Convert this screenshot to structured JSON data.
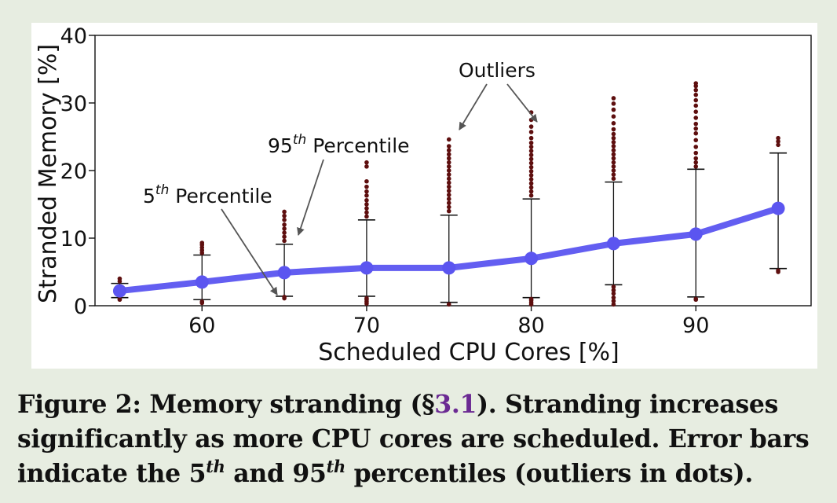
{
  "chart_data": {
    "type": "line",
    "xlabel": "Scheduled CPU Cores [%]",
    "ylabel": "Stranded Memory [%]",
    "xlim": [
      53.5,
      97
    ],
    "ylim": [
      0,
      40
    ],
    "xticks": [
      "60",
      "70",
      "80",
      "90"
    ],
    "yticks": [
      "0",
      "10",
      "20",
      "30",
      "40"
    ],
    "x": [
      55,
      60,
      65,
      70,
      75,
      80,
      85,
      90,
      95
    ],
    "series": [
      {
        "values": [
          2.2,
          3.5,
          4.9,
          5.6,
          5.6,
          7.0,
          9.2,
          10.6,
          14.4
        ]
      }
    ],
    "error_bars": {
      "p5": [
        1.2,
        0.9,
        1.4,
        1.4,
        0.5,
        1.2,
        3.1,
        1.3,
        5.5
      ],
      "p95": [
        3.3,
        7.5,
        9.1,
        12.7,
        13.4,
        15.8,
        18.3,
        20.2,
        22.6
      ]
    },
    "outliers": [
      {
        "x": 55,
        "values": [
          3.6,
          4.0,
          0.9,
          1.0
        ]
      },
      {
        "x": 60,
        "values": [
          7.8,
          8.2,
          8.6,
          9.0,
          9.3,
          0.4,
          0.6
        ]
      },
      {
        "x": 65,
        "values": [
          9.6,
          10.2,
          10.8,
          11.4,
          12.0,
          12.7,
          13.3,
          13.9,
          1.1,
          1.3
        ]
      },
      {
        "x": 70,
        "values": [
          13.2,
          13.8,
          14.4,
          15.0,
          15.6,
          16.3,
          16.9,
          17.6,
          18.4,
          20.6,
          21.2,
          0.3,
          0.6,
          0.9,
          1.1
        ]
      },
      {
        "x": 75,
        "values": [
          14.0,
          14.6,
          15.2,
          15.8,
          16.4,
          17.0,
          17.6,
          18.2,
          18.8,
          19.4,
          20.0,
          20.6,
          21.2,
          21.8,
          22.4,
          23.0,
          23.6,
          24.6,
          0.2
        ]
      },
      {
        "x": 80,
        "values": [
          16.3,
          16.9,
          17.5,
          18.1,
          18.7,
          19.3,
          19.9,
          20.5,
          21.1,
          21.7,
          22.3,
          22.9,
          23.5,
          24.1,
          24.8,
          25.7,
          26.5,
          27.5,
          28.6,
          0.2,
          0.5,
          0.8,
          1.0
        ]
      },
      {
        "x": 85,
        "values": [
          18.8,
          19.4,
          20.0,
          20.6,
          21.2,
          21.8,
          22.4,
          23.0,
          23.6,
          24.2,
          24.8,
          25.4,
          26.1,
          27.0,
          28.0,
          29.0,
          29.9,
          30.7,
          2.8,
          2.3,
          1.8,
          1.2,
          0.7,
          0.2
        ]
      },
      {
        "x": 90,
        "values": [
          20.6,
          21.2,
          21.8,
          22.6,
          23.5,
          24.5,
          25.5,
          26.2,
          26.9,
          27.8,
          28.7,
          29.6,
          30.4,
          31.2,
          31.9,
          32.5,
          32.9,
          1.0,
          0.9
        ]
      },
      {
        "x": 95,
        "values": [
          23.8,
          24.3,
          24.8,
          5.2,
          5.0
        ]
      }
    ],
    "annotations": {
      "outliers": "Outliers",
      "p95_base": "95",
      "p95_sup": "th",
      "p95_rest": " Percentile",
      "p5_base": "5",
      "p5_sup": "th",
      "p5_rest": " Percentile"
    },
    "colors": {
      "line": "#5b55f0",
      "outlier": "#5e0f0f",
      "axes": "#111111"
    }
  },
  "caption": {
    "prefix": "Figure 2:  Memory stranding (§",
    "ref": "3.1",
    "mid": ").  Stranding increases significantly as more CPU cores are scheduled. Error bars indicate the 5",
    "sup1": "th",
    "and": " and 95",
    "sup2": "th",
    "suffix": " percentiles (outliers in dots)."
  }
}
